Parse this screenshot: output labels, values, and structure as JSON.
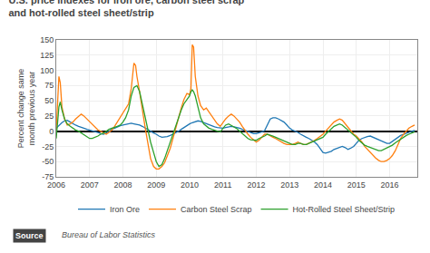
{
  "chart_data": {
    "type": "line",
    "title": "U.S. price indexes for iron ore, carbon steel scrap\nand hot-rolled steel sheet/strip",
    "y_label": "Percent change same\nmonth previous year",
    "annotations": [
      "Source",
      "Bureau of Labor Statistics"
    ],
    "xlim": [
      2006.0,
      2016.83
    ],
    "xticks": [
      2006,
      2007,
      2008,
      2009,
      2010,
      2011,
      2012,
      2013,
      2014,
      2015,
      2016
    ],
    "ylim": [
      -75,
      150
    ],
    "yticks": [
      -75,
      -50,
      -25,
      0,
      25,
      50,
      75,
      100,
      125,
      150
    ],
    "grid": true,
    "legend": "bottom",
    "series": [
      {
        "name": "Iron Ore",
        "x": [
          2006.0,
          2006.08,
          2006.17,
          2006.25,
          2006.33,
          2006.42,
          2006.5,
          2006.58,
          2006.67,
          2006.75,
          2006.83,
          2006.92,
          2007.0,
          2007.08,
          2007.17,
          2007.25,
          2007.33,
          2007.42,
          2007.5,
          2007.58,
          2007.67,
          2007.75,
          2007.83,
          2007.92,
          2008.0,
          2008.08,
          2008.17,
          2008.25,
          2008.33,
          2008.42,
          2008.5,
          2008.58,
          2008.67,
          2008.75,
          2008.83,
          2008.92,
          2009.0,
          2009.08,
          2009.17,
          2009.25,
          2009.33,
          2009.42,
          2009.5,
          2009.58,
          2009.67,
          2009.75,
          2009.83,
          2009.92,
          2010.0,
          2010.08,
          2010.17,
          2010.25,
          2010.33,
          2010.42,
          2010.5,
          2010.58,
          2010.67,
          2010.75,
          2010.83,
          2010.92,
          2011.0,
          2011.08,
          2011.17,
          2011.25,
          2011.33,
          2011.42,
          2011.5,
          2011.58,
          2011.67,
          2011.75,
          2011.83,
          2011.92,
          2012.0,
          2012.08,
          2012.17,
          2012.25,
          2012.33,
          2012.42,
          2012.5,
          2012.58,
          2012.67,
          2012.75,
          2012.83,
          2012.92,
          2013.0,
          2013.08,
          2013.17,
          2013.25,
          2013.33,
          2013.42,
          2013.5,
          2013.58,
          2013.67,
          2013.75,
          2013.83,
          2013.92,
          2014.0,
          2014.08,
          2014.17,
          2014.25,
          2014.33,
          2014.42,
          2014.5,
          2014.58,
          2014.67,
          2014.75,
          2014.83,
          2014.92,
          2015.0,
          2015.08,
          2015.17,
          2015.25,
          2015.33,
          2015.42,
          2015.5,
          2015.58,
          2015.67,
          2015.75,
          2015.83,
          2015.92,
          2016.0,
          2016.08,
          2016.17,
          2016.25,
          2016.33,
          2016.42,
          2016.5,
          2016.58,
          2016.67,
          2016.75
        ],
        "values": [
          5,
          10,
          14,
          17,
          18,
          15,
          12,
          10,
          8,
          6,
          5,
          3,
          2,
          1,
          0,
          -2,
          -4,
          -5,
          -3,
          0,
          3,
          5,
          7,
          9,
          10,
          11,
          12,
          13,
          12,
          11,
          10,
          8,
          5,
          2,
          0,
          -3,
          -5,
          -8,
          -10,
          -10,
          -9,
          -7,
          -5,
          -2,
          0,
          3,
          6,
          9,
          12,
          14,
          16,
          17,
          16,
          14,
          12,
          10,
          8,
          7,
          6,
          5,
          5,
          6,
          7,
          8,
          7,
          6,
          5,
          3,
          1,
          -1,
          -3,
          -4,
          -4,
          -3,
          -1,
          1,
          10,
          20,
          22,
          22,
          20,
          18,
          15,
          10,
          5,
          2,
          0,
          -2,
          -5,
          -8,
          -10,
          -12,
          -15,
          -18,
          -22,
          -28,
          -35,
          -36,
          -35,
          -33,
          -30,
          -28,
          -26,
          -25,
          -27,
          -30,
          -28,
          -25,
          -20,
          -15,
          -12,
          -10,
          -9,
          -8,
          -10,
          -12,
          -14,
          -16,
          -18,
          -20,
          -20,
          -17,
          -13,
          -10,
          -7,
          -5,
          -3,
          -2,
          0,
          1
        ]
      },
      {
        "name": "Carbon Steel Scrap",
        "x": [
          2006.0,
          2006.04,
          2006.08,
          2006.12,
          2006.17,
          2006.25,
          2006.33,
          2006.42,
          2006.5,
          2006.58,
          2006.67,
          2006.75,
          2006.83,
          2006.92,
          2007.0,
          2007.08,
          2007.17,
          2007.25,
          2007.33,
          2007.42,
          2007.5,
          2007.58,
          2007.67,
          2007.75,
          2007.83,
          2007.92,
          2008.0,
          2008.08,
          2008.17,
          2008.25,
          2008.33,
          2008.38,
          2008.42,
          2008.5,
          2008.58,
          2008.67,
          2008.75,
          2008.83,
          2008.92,
          2009.0,
          2009.08,
          2009.17,
          2009.25,
          2009.33,
          2009.42,
          2009.5,
          2009.58,
          2009.67,
          2009.75,
          2009.83,
          2009.92,
          2010.0,
          2010.04,
          2010.08,
          2010.12,
          2010.17,
          2010.25,
          2010.33,
          2010.42,
          2010.5,
          2010.58,
          2010.67,
          2010.75,
          2010.83,
          2010.92,
          2011.0,
          2011.08,
          2011.17,
          2011.25,
          2011.33,
          2011.42,
          2011.5,
          2011.58,
          2011.67,
          2011.75,
          2011.83,
          2011.92,
          2012.0,
          2012.08,
          2012.17,
          2012.25,
          2012.33,
          2012.42,
          2012.5,
          2012.58,
          2012.67,
          2012.75,
          2012.83,
          2012.92,
          2013.0,
          2013.08,
          2013.17,
          2013.25,
          2013.33,
          2013.42,
          2013.5,
          2013.58,
          2013.67,
          2013.75,
          2013.83,
          2013.92,
          2014.0,
          2014.08,
          2014.17,
          2014.25,
          2014.33,
          2014.42,
          2014.5,
          2014.58,
          2014.67,
          2014.75,
          2014.83,
          2014.92,
          2015.0,
          2015.08,
          2015.17,
          2015.25,
          2015.33,
          2015.42,
          2015.5,
          2015.58,
          2015.67,
          2015.75,
          2015.83,
          2015.92,
          2016.0,
          2016.08,
          2016.17,
          2016.25,
          2016.33,
          2016.42,
          2016.5,
          2016.58,
          2016.67,
          2016.75
        ],
        "values": [
          2,
          50,
          90,
          80,
          40,
          20,
          10,
          12,
          15,
          20,
          25,
          28,
          25,
          20,
          15,
          10,
          5,
          2,
          0,
          -3,
          -5,
          -2,
          2,
          8,
          15,
          22,
          30,
          38,
          45,
          70,
          112,
          108,
          90,
          65,
          35,
          5,
          -20,
          -45,
          -58,
          -62,
          -62,
          -58,
          -52,
          -42,
          -28,
          -12,
          5,
          22,
          38,
          52,
          62,
          60,
          70,
          142,
          138,
          90,
          58,
          42,
          35,
          38,
          32,
          25,
          18,
          12,
          8,
          15,
          20,
          25,
          28,
          25,
          20,
          15,
          8,
          0,
          -5,
          -10,
          -15,
          -18,
          -15,
          -10,
          -5,
          -5,
          -8,
          -10,
          -12,
          -15,
          -18,
          -20,
          -22,
          -22,
          -22,
          -20,
          -18,
          -20,
          -22,
          -22,
          -20,
          -18,
          -15,
          -12,
          -8,
          -5,
          0,
          5,
          10,
          15,
          18,
          20,
          18,
          12,
          5,
          0,
          -5,
          -8,
          -12,
          -18,
          -25,
          -30,
          -35,
          -40,
          -44,
          -48,
          -50,
          -50,
          -48,
          -45,
          -40,
          -32,
          -22,
          -12,
          -5,
          0,
          5,
          8,
          10
        ]
      },
      {
        "name": "Hot-Rolled Steel Sheet/Strip",
        "x": [
          2006.0,
          2006.04,
          2006.08,
          2006.12,
          2006.17,
          2006.25,
          2006.33,
          2006.42,
          2006.5,
          2006.58,
          2006.67,
          2006.75,
          2006.83,
          2006.92,
          2007.0,
          2007.08,
          2007.17,
          2007.25,
          2007.33,
          2007.42,
          2007.5,
          2007.58,
          2007.67,
          2007.75,
          2007.83,
          2007.92,
          2008.0,
          2008.08,
          2008.17,
          2008.25,
          2008.33,
          2008.42,
          2008.5,
          2008.58,
          2008.67,
          2008.75,
          2008.83,
          2008.92,
          2009.0,
          2009.08,
          2009.17,
          2009.25,
          2009.33,
          2009.42,
          2009.5,
          2009.58,
          2009.67,
          2009.75,
          2009.83,
          2009.92,
          2010.0,
          2010.04,
          2010.08,
          2010.12,
          2010.17,
          2010.25,
          2010.33,
          2010.42,
          2010.5,
          2010.58,
          2010.67,
          2010.75,
          2010.83,
          2010.92,
          2011.0,
          2011.08,
          2011.17,
          2011.25,
          2011.33,
          2011.42,
          2011.5,
          2011.58,
          2011.67,
          2011.75,
          2011.83,
          2011.92,
          2012.0,
          2012.08,
          2012.17,
          2012.25,
          2012.33,
          2012.42,
          2012.5,
          2012.58,
          2012.67,
          2012.75,
          2012.83,
          2012.92,
          2013.0,
          2013.08,
          2013.17,
          2013.25,
          2013.33,
          2013.42,
          2013.5,
          2013.58,
          2013.67,
          2013.75,
          2013.83,
          2013.92,
          2014.0,
          2014.08,
          2014.17,
          2014.25,
          2014.33,
          2014.42,
          2014.5,
          2014.58,
          2014.67,
          2014.75,
          2014.83,
          2014.92,
          2015.0,
          2015.08,
          2015.17,
          2015.25,
          2015.33,
          2015.42,
          2015.5,
          2015.58,
          2015.67,
          2015.75,
          2015.83,
          2015.92,
          2016.0,
          2016.08,
          2016.17,
          2016.25,
          2016.33,
          2016.42,
          2016.5,
          2016.58,
          2016.67,
          2016.75
        ],
        "values": [
          -12,
          10,
          40,
          48,
          35,
          20,
          12,
          8,
          5,
          2,
          0,
          -3,
          -6,
          -10,
          -12,
          -12,
          -10,
          -8,
          -5,
          -3,
          0,
          3,
          5,
          7,
          8,
          10,
          15,
          22,
          35,
          58,
          72,
          75,
          65,
          45,
          22,
          0,
          -18,
          -35,
          -50,
          -58,
          -55,
          -45,
          -32,
          -18,
          -5,
          10,
          22,
          35,
          45,
          52,
          58,
          65,
          68,
          65,
          58,
          40,
          22,
          12,
          8,
          5,
          3,
          1,
          0,
          -1,
          5,
          10,
          12,
          10,
          7,
          4,
          0,
          -4,
          -8,
          -12,
          -14,
          -15,
          -15,
          -12,
          -10,
          -8,
          -5,
          -6,
          -8,
          -10,
          -12,
          -14,
          -16,
          -18,
          -20,
          -22,
          -22,
          -20,
          -20,
          -22,
          -22,
          -20,
          -18,
          -16,
          -14,
          -12,
          -10,
          -5,
          0,
          5,
          8,
          10,
          12,
          10,
          6,
          2,
          -2,
          -6,
          -10,
          -15,
          -20,
          -23,
          -25,
          -27,
          -28,
          -30,
          -32,
          -32,
          -30,
          -28,
          -26,
          -23,
          -19,
          -16,
          -13,
          -10,
          -7,
          -5,
          -3,
          -1
        ]
      }
    ]
  }
}
